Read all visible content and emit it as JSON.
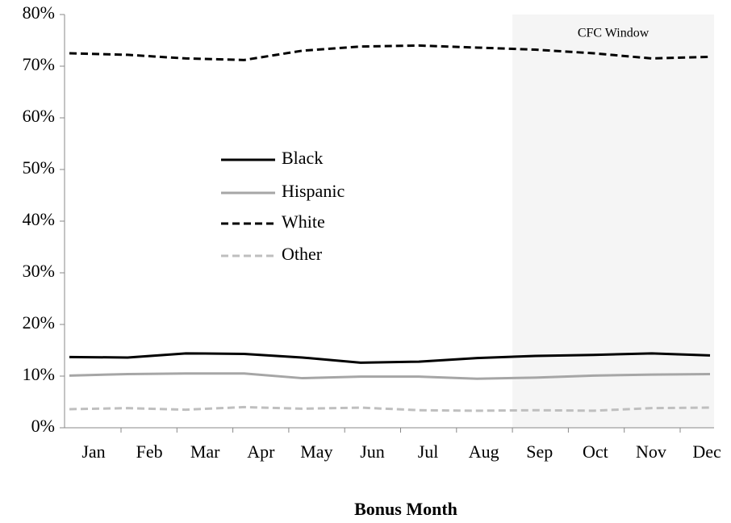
{
  "chart_data": {
    "type": "line",
    "x_label": "Bonus Month",
    "categories": [
      "Jan",
      "Feb",
      "Mar",
      "Apr",
      "May",
      "Jun",
      "Jul",
      "Aug",
      "Sep",
      "Oct",
      "Nov",
      "Dec"
    ],
    "series": [
      {
        "name": "Black",
        "color": "#000000",
        "dash": false,
        "values": [
          13.7,
          13.6,
          14.4,
          14.3,
          13.6,
          12.6,
          12.8,
          13.5,
          13.9,
          14.1,
          14.4,
          14.0
        ]
      },
      {
        "name": "Hispanic",
        "color": "#a6a6a6",
        "dash": false,
        "values": [
          10.1,
          10.4,
          10.5,
          10.5,
          9.6,
          9.9,
          9.9,
          9.5,
          9.7,
          10.1,
          10.3,
          10.4
        ]
      },
      {
        "name": "White",
        "color": "#000000",
        "dash": true,
        "values": [
          72.5,
          72.2,
          71.5,
          71.2,
          73.0,
          73.8,
          74.0,
          73.6,
          73.2,
          72.5,
          71.5,
          71.8
        ]
      },
      {
        "name": "Other",
        "color": "#bfbfbf",
        "dash": true,
        "values": [
          3.6,
          3.8,
          3.5,
          4.0,
          3.7,
          3.9,
          3.4,
          3.3,
          3.4,
          3.3,
          3.8,
          3.9
        ]
      }
    ],
    "ylim": [
      0,
      80
    ],
    "yticks": [
      {
        "value": 0,
        "label": "0%"
      },
      {
        "value": 10,
        "label": "10%"
      },
      {
        "value": 20,
        "label": "20%"
      },
      {
        "value": 30,
        "label": "30%"
      },
      {
        "value": 40,
        "label": "40%"
      },
      {
        "value": 50,
        "label": "50%"
      },
      {
        "value": 60,
        "label": "60%"
      },
      {
        "value": 70,
        "label": "70%"
      },
      {
        "value": 80,
        "label": "80%"
      }
    ],
    "shaded_region": {
      "label": "CFC Window",
      "from": "Sep",
      "to": "Dec"
    }
  }
}
